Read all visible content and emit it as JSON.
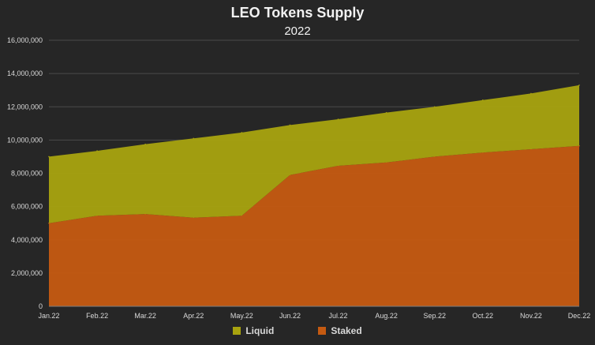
{
  "chart_data": {
    "type": "area",
    "stacked": true,
    "title": "LEO Tokens Supply",
    "subtitle": "2022",
    "categories": [
      "Jan.22",
      "Feb.22",
      "Mar.22",
      "Apr.22",
      "May.22",
      "Jun.22",
      "Jul.22",
      "Aug.22",
      "Sep.22",
      "Oct.22",
      "Nov.22",
      "Dec.22"
    ],
    "ylim": [
      0,
      16000000
    ],
    "yticks": [
      0,
      2000000,
      4000000,
      6000000,
      8000000,
      10000000,
      12000000,
      14000000,
      16000000
    ],
    "ytick_labels": [
      "0",
      "2,000,000",
      "4,000,000",
      "6,000,000",
      "8,000,000",
      "10,000,000",
      "12,000,000",
      "14,000,000",
      "16,000,000"
    ],
    "grid": true,
    "legend_position": "bottom",
    "series": [
      {
        "name": "Staked",
        "color": "#c55a11",
        "values": [
          5000000,
          5450000,
          5550000,
          5330000,
          5450000,
          7900000,
          8450000,
          8650000,
          9000000,
          9250000,
          9450000,
          9650000
        ]
      },
      {
        "name": "Liquid",
        "color": "#a8a30f",
        "values": [
          4000000,
          3900000,
          4200000,
          4770000,
          5000000,
          3000000,
          2800000,
          3000000,
          3000000,
          3150000,
          3350000,
          3650000
        ]
      }
    ],
    "totals": [
      9000000,
      9350000,
      9750000,
      10100000,
      10450000,
      10900000,
      11250000,
      11650000,
      12000000,
      12400000,
      12800000,
      13300000
    ]
  },
  "legend": [
    {
      "label": "Liquid",
      "color": "#a8a30f"
    },
    {
      "label": "Staked",
      "color": "#c55a11"
    }
  ]
}
